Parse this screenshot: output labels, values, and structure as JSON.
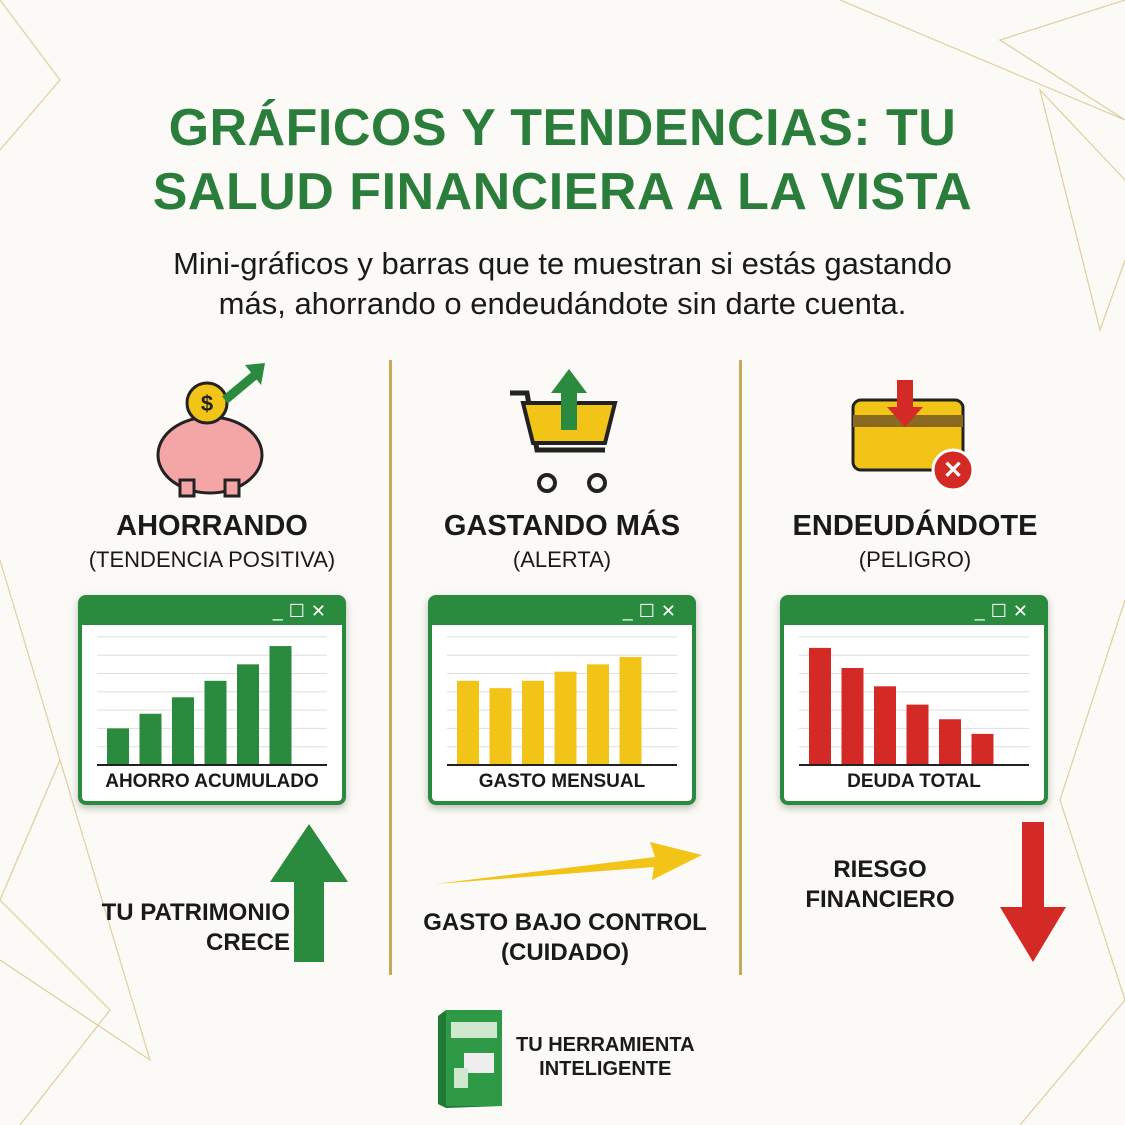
{
  "title": {
    "line1": "GRÁFICOS Y TENDENCIAS: TU",
    "line2": "SALUD FINANCIERA A LA VISTA"
  },
  "subtitle": {
    "line1": "Mini-gráficos y barras que te muestran si estás gastando",
    "line2": "más, ahorrando o endeudándote sin darte cuenta."
  },
  "columns": [
    {
      "heading": "AHORRANDO",
      "subheading": "(TENDENCIA POSITIVA)",
      "icon": "piggy-bank-coin-arrow-up-icon",
      "window_controls": "_☐✕",
      "chart_label": "AHORRO ACUMULADO",
      "bar_color": "#2a8a3e",
      "values": [
        2.0,
        2.8,
        3.7,
        4.6,
        5.5,
        6.5
      ],
      "note": [
        "TU PATRIMONIO",
        "CRECE"
      ],
      "arrow": "arrow-up-icon",
      "arrow_color": "#2a8a3e"
    },
    {
      "heading": "GASTANDO MÁS",
      "subheading": "(ALERTA)",
      "icon": "shopping-cart-arrow-up-icon",
      "window_controls": "_☐✕",
      "chart_label": "GASTO MENSUAL",
      "bar_color": "#f2c418",
      "values": [
        4.6,
        4.2,
        4.6,
        5.1,
        5.5,
        5.9
      ],
      "note": [
        "GASTO BAJO CONTROL",
        "(CUIDADO)"
      ],
      "arrow": "arrow-right-icon",
      "arrow_color": "#f2c418"
    },
    {
      "heading": "ENDEUDÁNDOTE",
      "subheading": "(PELIGRO)",
      "icon": "credit-card-arrow-down-icon",
      "window_controls": "_☐✕",
      "chart_label": "DEUDA TOTAL",
      "bar_color": "#d42a25",
      "values": [
        6.4,
        5.3,
        4.3,
        3.3,
        2.5,
        1.7
      ],
      "note": [
        "RIESGO",
        "FINANCIERO"
      ],
      "arrow": "arrow-down-icon",
      "arrow_color": "#d42a25"
    }
  ],
  "footer": {
    "line1": "TU HERRAMIENTA",
    "line2": "INTELIGENTE",
    "icon": "software-box-icon"
  }
}
